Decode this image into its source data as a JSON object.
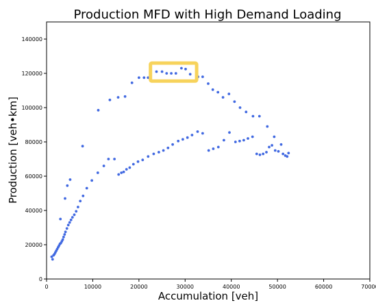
{
  "chart_data": {
    "type": "scatter",
    "title": "Production MFD with High Demand Loading",
    "xlabel": "Accumulation [veh]",
    "ylabel": "Production [veh•km]",
    "xlim": [
      0,
      70000
    ],
    "ylim": [
      0,
      150000
    ],
    "xticks": [
      0,
      10000,
      20000,
      30000,
      40000,
      50000,
      60000,
      70000
    ],
    "xtick_labels": [
      "0",
      "10000",
      "20000",
      "30000",
      "40000",
      "50000",
      "60000",
      "70000"
    ],
    "yticks": [
      0,
      20000,
      40000,
      60000,
      80000,
      100000,
      120000,
      140000
    ],
    "ytick_labels": [
      "0",
      "20000",
      "40000",
      "60000",
      "80000",
      "100000",
      "120000",
      "140000"
    ],
    "grid": false,
    "marker_color": "#4169e1",
    "highlight": {
      "color": "#f7d35c",
      "x_range": [
        22500,
        32500
      ],
      "y_range": [
        115500,
        126000
      ]
    },
    "series": [
      {
        "points": [
          [
            1100,
            13000
          ],
          [
            1300,
            11500
          ],
          [
            1500,
            13800
          ],
          [
            1700,
            14500
          ],
          [
            1900,
            15500
          ],
          [
            2100,
            16500
          ],
          [
            2300,
            17500
          ],
          [
            2500,
            18500
          ],
          [
            2700,
            19500
          ],
          [
            2900,
            20500
          ],
          [
            3100,
            21000
          ],
          [
            3300,
            22000
          ],
          [
            3500,
            23000
          ],
          [
            3700,
            24500
          ],
          [
            3900,
            26000
          ],
          [
            4100,
            27500
          ],
          [
            4400,
            29500
          ],
          [
            4700,
            31500
          ],
          [
            5000,
            33000
          ],
          [
            5300,
            34500
          ],
          [
            5600,
            36000
          ],
          [
            6000,
            37500
          ],
          [
            6400,
            39500
          ],
          [
            6800,
            42000
          ],
          [
            7300,
            45500
          ],
          [
            7900,
            48500
          ],
          [
            8700,
            53000
          ],
          [
            9800,
            57500
          ],
          [
            11100,
            62000
          ],
          [
            12400,
            66000
          ],
          [
            13400,
            70000
          ],
          [
            14700,
            70000
          ],
          [
            15600,
            61000
          ],
          [
            16200,
            62000
          ],
          [
            16700,
            62500
          ],
          [
            17300,
            64000
          ],
          [
            18000,
            65000
          ],
          [
            18800,
            67000
          ],
          [
            19800,
            68500
          ],
          [
            20800,
            69500
          ],
          [
            22000,
            71500
          ],
          [
            23200,
            73000
          ],
          [
            24300,
            74000
          ],
          [
            25300,
            75000
          ],
          [
            26300,
            76500
          ],
          [
            27300,
            78500
          ],
          [
            28500,
            80500
          ],
          [
            29500,
            81500
          ],
          [
            30500,
            82500
          ],
          [
            31500,
            84000
          ],
          [
            32700,
            86000
          ],
          [
            33800,
            85000
          ],
          [
            35100,
            75000
          ],
          [
            36100,
            76000
          ],
          [
            37200,
            77000
          ],
          [
            38400,
            81000
          ],
          [
            39600,
            85500
          ],
          [
            40900,
            80000
          ],
          [
            41800,
            80500
          ],
          [
            42700,
            81000
          ],
          [
            43600,
            82000
          ],
          [
            44600,
            83000
          ],
          [
            45500,
            73000
          ],
          [
            46200,
            72500
          ],
          [
            46900,
            73000
          ],
          [
            47600,
            74000
          ],
          [
            48200,
            77000
          ],
          [
            48800,
            78000
          ],
          [
            49500,
            75000
          ],
          [
            50200,
            74500
          ],
          [
            50800,
            78500
          ],
          [
            51200,
            73000
          ],
          [
            51700,
            72000
          ],
          [
            52100,
            71500
          ],
          [
            52400,
            73500
          ],
          [
            3000,
            35000
          ],
          [
            4000,
            47000
          ],
          [
            4500,
            54500
          ],
          [
            5100,
            58000
          ],
          [
            7800,
            77500
          ],
          [
            11200,
            98500
          ],
          [
            13700,
            104500
          ],
          [
            15500,
            106000
          ],
          [
            17000,
            106500
          ],
          [
            18500,
            114500
          ],
          [
            20000,
            117500
          ],
          [
            21100,
            117500
          ],
          [
            22000,
            117500
          ],
          [
            23800,
            121000
          ],
          [
            25000,
            121000
          ],
          [
            26000,
            120000
          ],
          [
            27000,
            120000
          ],
          [
            28000,
            120000
          ],
          [
            29200,
            123000
          ],
          [
            30100,
            122500
          ],
          [
            31100,
            119500
          ],
          [
            32800,
            118000
          ],
          [
            33800,
            118000
          ],
          [
            35000,
            114000
          ],
          [
            36000,
            110500
          ],
          [
            37100,
            109000
          ],
          [
            38200,
            106000
          ],
          [
            39500,
            108000
          ],
          [
            40700,
            103500
          ],
          [
            41900,
            100000
          ],
          [
            43200,
            97500
          ],
          [
            44700,
            95000
          ],
          [
            46100,
            95000
          ],
          [
            47800,
            89000
          ],
          [
            49300,
            83000
          ]
        ]
      }
    ]
  }
}
